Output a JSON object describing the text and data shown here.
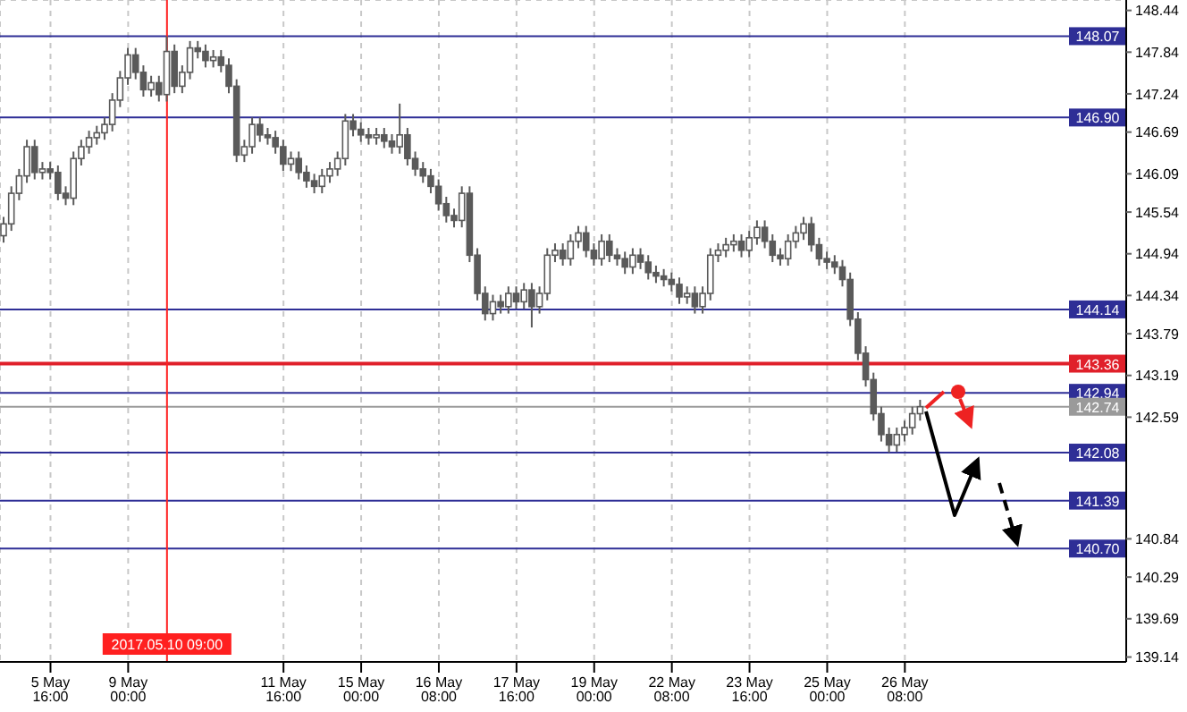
{
  "chart_data": {
    "type": "candlestick",
    "categories": [
      null,
      null,
      null,
      null,
      null,
      null,
      "5 May 16:00",
      null,
      null,
      null,
      null,
      null,
      null,
      null,
      null,
      null,
      "9 May 00:00",
      null,
      null,
      null,
      null,
      "2017.05.10 09:00",
      null,
      null,
      null,
      null,
      null,
      null,
      null,
      null,
      null,
      null,
      null,
      null,
      null,
      null,
      "11 May 16:00",
      null,
      null,
      null,
      null,
      null,
      null,
      null,
      null,
      null,
      "15 May 00:00",
      null,
      null,
      null,
      null,
      null,
      null,
      null,
      null,
      null,
      "16 May 08:00",
      null,
      null,
      null,
      null,
      null,
      null,
      null,
      null,
      null,
      "17 May 16:00",
      null,
      null,
      null,
      null,
      null,
      null,
      null,
      null,
      null,
      "19 May 00:00",
      null,
      null,
      null,
      null,
      null,
      null,
      null,
      null,
      null,
      "22 May 08:00",
      null,
      null,
      null,
      null,
      null,
      null,
      null,
      null,
      null,
      "23 May 16:00",
      null,
      null,
      null,
      null,
      null,
      null,
      null,
      null,
      null,
      "25 May 00:00",
      null,
      null,
      null,
      null,
      null,
      null,
      null,
      null,
      null,
      "26 May 08:00",
      null,
      null,
      null,
      null,
      null,
      null,
      null,
      null,
      null,
      null,
      null,
      null,
      null,
      null,
      null,
      null,
      null,
      null,
      null,
      null,
      null,
      null,
      null,
      null,
      null,
      null,
      null,
      null
    ],
    "series": [
      {
        "color": "#5a5a5a",
        "ohlc": [
          [
            145.2,
            145.47,
            145.1,
            145.37
          ],
          [
            145.37,
            145.91,
            145.27,
            145.81
          ],
          [
            145.81,
            146.16,
            145.71,
            146.06
          ],
          [
            146.06,
            146.58,
            145.96,
            146.48
          ],
          [
            146.48,
            146.58,
            146.01,
            146.11
          ],
          [
            146.11,
            146.26,
            146.01,
            146.16
          ],
          [
            146.16,
            146.26,
            146.01,
            146.11
          ],
          [
            146.11,
            146.21,
            145.71,
            145.81
          ],
          [
            145.81,
            145.91,
            145.64,
            145.74
          ],
          [
            145.74,
            146.41,
            145.64,
            146.31
          ],
          [
            146.31,
            146.58,
            146.21,
            146.48
          ],
          [
            146.48,
            146.71,
            146.38,
            146.61
          ],
          [
            146.61,
            146.78,
            146.51,
            146.68
          ],
          [
            146.68,
            146.9,
            146.58,
            146.8
          ],
          [
            146.8,
            147.25,
            146.7,
            147.15
          ],
          [
            147.15,
            147.57,
            147.05,
            147.47
          ],
          [
            147.47,
            147.9,
            147.37,
            147.8
          ],
          [
            147.8,
            147.9,
            147.45,
            147.55
          ],
          [
            147.55,
            147.65,
            147.2,
            147.3
          ],
          [
            147.3,
            147.5,
            147.2,
            147.4
          ],
          [
            147.4,
            147.5,
            147.13,
            147.23
          ],
          [
            147.23,
            148.07,
            147.13,
            147.85
          ],
          [
            147.85,
            147.95,
            147.25,
            147.35
          ],
          [
            147.35,
            147.65,
            147.25,
            147.55
          ],
          [
            147.55,
            148.0,
            147.45,
            147.9
          ],
          [
            147.9,
            148.0,
            147.75,
            147.85
          ],
          [
            147.85,
            147.95,
            147.62,
            147.72
          ],
          [
            147.72,
            147.87,
            147.62,
            147.77
          ],
          [
            147.77,
            147.87,
            147.55,
            147.65
          ],
          [
            147.65,
            147.75,
            147.25,
            147.35
          ],
          [
            147.35,
            147.45,
            146.26,
            146.36
          ],
          [
            146.36,
            146.58,
            146.26,
            146.48
          ],
          [
            146.48,
            146.9,
            146.38,
            146.8
          ],
          [
            146.8,
            146.9,
            146.55,
            146.65
          ],
          [
            146.65,
            146.75,
            146.51,
            146.61
          ],
          [
            146.61,
            146.71,
            146.38,
            146.48
          ],
          [
            146.48,
            146.58,
            146.13,
            146.23
          ],
          [
            146.23,
            146.41,
            146.13,
            146.31
          ],
          [
            146.31,
            146.41,
            146.01,
            146.11
          ],
          [
            146.11,
            146.21,
            145.89,
            145.99
          ],
          [
            145.99,
            146.09,
            145.81,
            145.91
          ],
          [
            145.91,
            146.16,
            145.81,
            146.06
          ],
          [
            146.06,
            146.26,
            145.96,
            146.16
          ],
          [
            146.16,
            146.41,
            146.06,
            146.31
          ],
          [
            146.31,
            146.95,
            146.21,
            146.85
          ],
          [
            146.85,
            146.95,
            146.63,
            146.73
          ],
          [
            146.73,
            146.83,
            146.55,
            146.65
          ],
          [
            146.65,
            146.75,
            146.51,
            146.61
          ],
          [
            146.61,
            146.75,
            146.51,
            146.65
          ],
          [
            146.65,
            146.75,
            146.46,
            146.56
          ],
          [
            146.56,
            146.66,
            146.38,
            146.48
          ],
          [
            146.48,
            147.1,
            146.38,
            146.65
          ],
          [
            146.65,
            146.75,
            146.21,
            146.31
          ],
          [
            146.31,
            146.41,
            146.06,
            146.16
          ],
          [
            146.16,
            146.26,
            145.96,
            146.06
          ],
          [
            146.06,
            146.16,
            145.81,
            145.91
          ],
          [
            145.91,
            146.01,
            145.56,
            145.66
          ],
          [
            145.66,
            145.76,
            145.39,
            145.49
          ],
          [
            145.49,
            145.59,
            145.32,
            145.42
          ],
          [
            145.42,
            145.91,
            145.32,
            145.81
          ],
          [
            145.81,
            145.91,
            144.82,
            144.92
          ],
          [
            144.92,
            145.02,
            144.27,
            144.37
          ],
          [
            144.37,
            144.47,
            143.98,
            144.08
          ],
          [
            144.08,
            144.35,
            143.98,
            144.25
          ],
          [
            144.25,
            144.35,
            144.08,
            144.18
          ],
          [
            144.18,
            144.47,
            144.08,
            144.37
          ],
          [
            144.37,
            144.47,
            144.15,
            144.25
          ],
          [
            144.25,
            144.52,
            144.15,
            144.42
          ],
          [
            144.42,
            144.52,
            143.88,
            144.18
          ],
          [
            144.18,
            144.47,
            144.08,
            144.37
          ],
          [
            144.37,
            145.02,
            144.27,
            144.92
          ],
          [
            144.92,
            145.09,
            144.82,
            144.99
          ],
          [
            144.99,
            145.09,
            144.77,
            144.87
          ],
          [
            144.87,
            145.22,
            144.77,
            145.12
          ],
          [
            145.12,
            145.34,
            145.02,
            145.24
          ],
          [
            145.24,
            145.34,
            144.89,
            144.99
          ],
          [
            144.99,
            145.09,
            144.77,
            144.87
          ],
          [
            144.87,
            145.22,
            144.77,
            145.12
          ],
          [
            145.12,
            145.22,
            144.82,
            144.92
          ],
          [
            144.92,
            145.02,
            144.77,
            144.87
          ],
          [
            144.87,
            144.97,
            144.65,
            144.75
          ],
          [
            144.75,
            145.02,
            144.65,
            144.92
          ],
          [
            144.92,
            145.02,
            144.72,
            144.82
          ],
          [
            144.82,
            144.92,
            144.57,
            144.67
          ],
          [
            144.67,
            144.77,
            144.52,
            144.62
          ],
          [
            144.62,
            144.72,
            144.47,
            144.57
          ],
          [
            144.57,
            144.67,
            144.4,
            144.5
          ],
          [
            144.5,
            144.6,
            144.22,
            144.32
          ],
          [
            144.32,
            144.47,
            144.22,
            144.37
          ],
          [
            144.37,
            144.47,
            144.08,
            144.18
          ],
          [
            144.18,
            144.47,
            144.08,
            144.37
          ],
          [
            144.37,
            145.02,
            144.27,
            144.92
          ],
          [
            144.92,
            145.09,
            144.82,
            144.99
          ],
          [
            144.99,
            145.17,
            144.89,
            145.07
          ],
          [
            145.07,
            145.22,
            144.97,
            145.12
          ],
          [
            145.12,
            145.22,
            144.89,
            144.99
          ],
          [
            144.99,
            145.27,
            144.89,
            145.17
          ],
          [
            145.17,
            145.42,
            145.07,
            145.32
          ],
          [
            145.32,
            145.42,
            145.02,
            145.12
          ],
          [
            145.12,
            145.22,
            144.82,
            144.92
          ],
          [
            144.92,
            145.02,
            144.77,
            144.87
          ],
          [
            144.87,
            145.22,
            144.77,
            145.12
          ],
          [
            145.12,
            145.34,
            145.02,
            145.24
          ],
          [
            145.24,
            145.47,
            145.14,
            145.37
          ],
          [
            145.37,
            145.47,
            144.97,
            145.07
          ],
          [
            145.07,
            145.17,
            144.77,
            144.87
          ],
          [
            144.87,
            144.97,
            144.72,
            144.82
          ],
          [
            144.82,
            144.92,
            144.65,
            144.75
          ],
          [
            144.75,
            144.85,
            144.47,
            144.57
          ],
          [
            144.57,
            144.67,
            143.9,
            144.0
          ],
          [
            144.0,
            144.1,
            143.41,
            143.51
          ],
          [
            143.51,
            143.61,
            143.03,
            143.13
          ],
          [
            143.13,
            143.23,
            142.54,
            142.64
          ],
          [
            142.64,
            142.74,
            142.24,
            142.34
          ],
          [
            142.34,
            142.44,
            142.08,
            142.19
          ],
          [
            142.19,
            142.44,
            142.09,
            142.34
          ],
          [
            142.34,
            142.54,
            142.24,
            142.44
          ],
          [
            142.44,
            142.74,
            142.34,
            142.64
          ],
          [
            142.64,
            142.84,
            142.54,
            142.74
          ],
          null,
          null,
          null,
          null,
          null,
          null,
          null,
          null,
          null,
          null,
          null,
          null,
          null,
          null,
          null,
          null,
          null,
          null,
          null,
          null,
          null,
          null,
          null,
          null,
          null,
          null
        ]
      }
    ],
    "ylim": [
      139.07,
      148.59
    ],
    "yticks": [
      139.14,
      139.69,
      140.29,
      140.84,
      142.59,
      143.19,
      143.79,
      144.34,
      144.94,
      145.54,
      146.09,
      146.69,
      147.24,
      147.84,
      148.44
    ],
    "grid": true,
    "ref_lines": [
      {
        "axis": "y",
        "value": 148.07,
        "label": "148.07",
        "color": "#2e2e96"
      },
      {
        "axis": "y",
        "value": 146.9,
        "label": "146.90",
        "color": "#2e2e96"
      },
      {
        "axis": "y",
        "value": 144.14,
        "label": "144.14",
        "color": "#2e2e96"
      },
      {
        "axis": "y",
        "value": 143.36,
        "label": "143.36",
        "color": "#e0202a"
      },
      {
        "axis": "y",
        "value": 142.94,
        "label": "142.94",
        "color": "#2e2e96"
      },
      {
        "axis": "y",
        "value": 142.74,
        "label": "142.74",
        "color": "#9a9a9a"
      },
      {
        "axis": "y",
        "value": 142.08,
        "label": "142.08",
        "color": "#2e2e96"
      },
      {
        "axis": "y",
        "value": 141.39,
        "label": "141.39",
        "color": "#2e2e96"
      },
      {
        "axis": "y",
        "value": 140.7,
        "label": "140.70",
        "color": "#2e2e96"
      },
      {
        "axis": "x",
        "value": "2017.05.10 09:00",
        "color": "#ff2020"
      }
    ]
  }
}
